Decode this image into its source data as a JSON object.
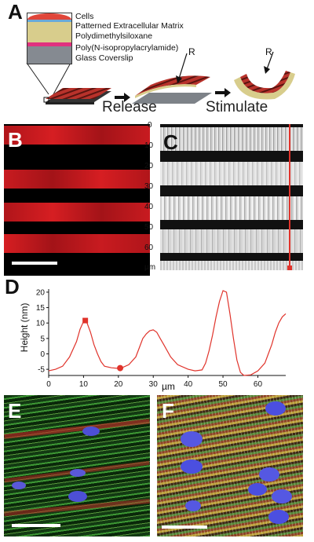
{
  "panels": {
    "a": "A",
    "b": "B",
    "c": "C",
    "d": "D",
    "e": "E",
    "f": "F"
  },
  "layers": [
    {
      "label": "Cells",
      "color": "#e0463a"
    },
    {
      "label": "Patterned Extracellular Matrix",
      "color": "#6aa9d8"
    },
    {
      "label": "Polydimethylsiloxane",
      "color": "#d8cd8c"
    },
    {
      "label": "Poly(N-isopropylacrylamide)",
      "color": "#e0317f"
    },
    {
      "label": "Glass Coverslip",
      "color": "#858a91"
    }
  ],
  "steps": {
    "release": "Release",
    "stimulate": "Stimulate",
    "r1": "R",
    "r2": "R"
  },
  "panel_c": {
    "ticks": [
      "0",
      "10",
      "20",
      "30",
      "40",
      "50",
      "60",
      "µm"
    ]
  },
  "chart_data": {
    "type": "line",
    "ylabel": "Height (nm)",
    "xlabel": "µm",
    "xlim": [
      0,
      68
    ],
    "ylim": [
      -7,
      21
    ],
    "xticks": [
      0,
      10,
      20,
      30,
      40,
      50,
      60
    ],
    "xtick_labels": [
      "0",
      "10",
      "20",
      "30",
      "40",
      "50",
      "60"
    ],
    "yticks": [
      -5,
      0,
      5,
      10,
      15,
      20
    ],
    "ytick_labels": [
      "-5",
      "0",
      "5",
      "10",
      "15",
      "20"
    ],
    "line_color": "#e0332b",
    "x": [
      0,
      2,
      4,
      6,
      8,
      9,
      10,
      10.5,
      11,
      12,
      13,
      14,
      15,
      16,
      18,
      20,
      21,
      23,
      25,
      26,
      27,
      28,
      29,
      30,
      31,
      32,
      33,
      35,
      37,
      40,
      42,
      44,
      45,
      46,
      47,
      48,
      49,
      50,
      51,
      52,
      53,
      54,
      55,
      56,
      58,
      60,
      62,
      63,
      64,
      65,
      66,
      67,
      68
    ],
    "y": [
      -5.5,
      -5,
      -4,
      -1,
      4,
      8,
      10.5,
      10.8,
      10,
      7,
      3,
      0,
      -2.5,
      -4,
      -4.5,
      -4.7,
      -4.5,
      -3.5,
      -1,
      2,
      5,
      6.5,
      7.5,
      7.8,
      7,
      5,
      3,
      -1,
      -3.5,
      -5,
      -5.5,
      -5.2,
      -3,
      1,
      6,
      12,
      17,
      20.5,
      20,
      13,
      5,
      -2,
      -6,
      -7,
      -6.8,
      -5.5,
      -3,
      0,
      3,
      7,
      10,
      12,
      13
    ],
    "markers": [
      {
        "x": 10.5,
        "y": 10.8,
        "shape": "square"
      },
      {
        "x": 20.5,
        "y": -4.6,
        "shape": "circle"
      }
    ]
  }
}
